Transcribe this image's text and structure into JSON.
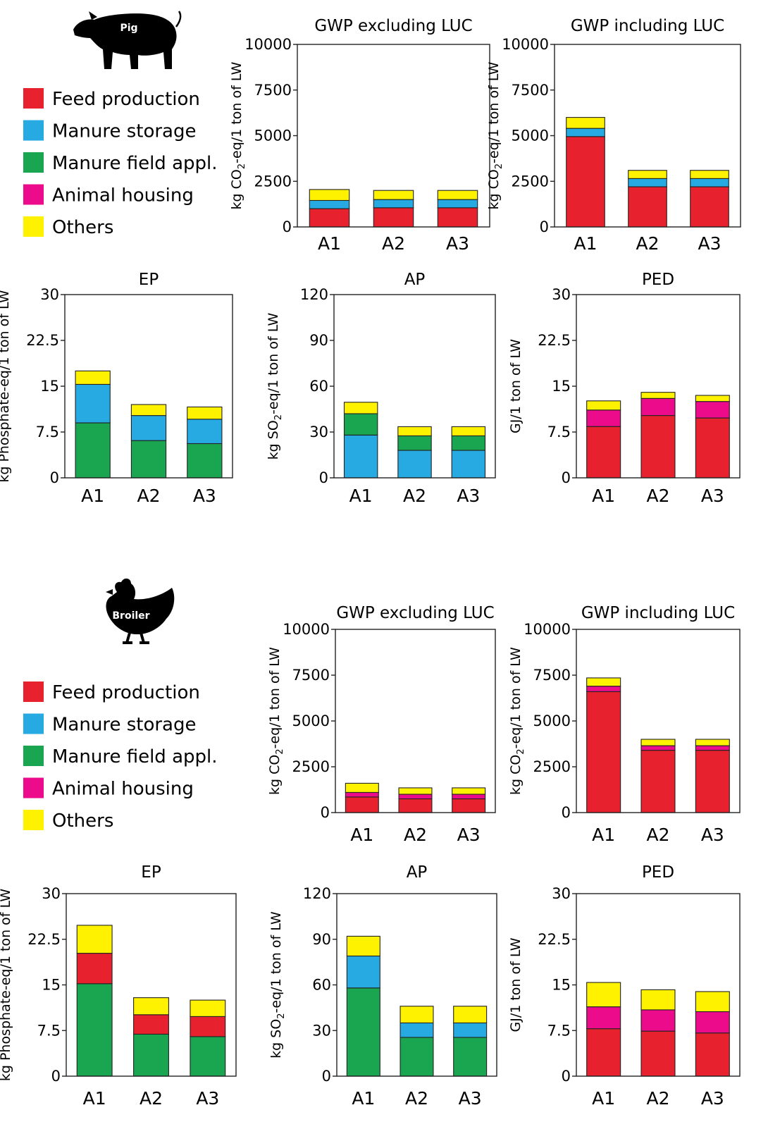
{
  "colors": {
    "feed_production": "#e8212e",
    "manure_storage": "#27aae1",
    "manure_field_appl": "#1aa551",
    "animal_housing": "#ec0b8b",
    "others": "#fff200"
  },
  "icons": [
    "pig-icon",
    "broiler-chicken-icon"
  ],
  "sections": [
    {
      "animal": "Pig",
      "legend": [
        {
          "label": "Feed production",
          "key": "feed_production"
        },
        {
          "label": "Manure storage",
          "key": "manure_storage"
        },
        {
          "label": "Manure field appl.",
          "key": "manure_field_appl"
        },
        {
          "label": "Animal housing",
          "key": "animal_housing"
        },
        {
          "label": "Others",
          "key": "others"
        }
      ]
    },
    {
      "animal": "Broiler",
      "legend": [
        {
          "label": "Feed production",
          "key": "feed_production"
        },
        {
          "label": "Manure storage",
          "key": "manure_storage"
        },
        {
          "label": "Manure field appl.",
          "key": "manure_field_appl"
        },
        {
          "label": "Animal housing",
          "key": "animal_housing"
        },
        {
          "label": "Others",
          "key": "others"
        }
      ]
    }
  ],
  "chart_data": [
    {
      "group": "Pig",
      "type": "bar",
      "stacked": true,
      "title": "GWP excluding LUC",
      "ylabel": "kg CO2-eq/1 ton of LW",
      "ylim": [
        0,
        10000
      ],
      "yticks": [
        "0",
        "2500",
        "5000",
        "7500",
        "10000"
      ],
      "categories": [
        "A1",
        "A2",
        "A3"
      ],
      "series": [
        {
          "key": "feed_production",
          "values": [
            1000,
            1050,
            1050
          ]
        },
        {
          "key": "manure_storage",
          "values": [
            450,
            450,
            450
          ]
        },
        {
          "key": "others",
          "values": [
            600,
            500,
            500
          ]
        }
      ]
    },
    {
      "group": "Pig",
      "type": "bar",
      "stacked": true,
      "title": "GWP including LUC",
      "ylabel": "kg CO2-eq/1 ton of LW",
      "ylim": [
        0,
        10000
      ],
      "yticks": [
        "0",
        "2500",
        "5000",
        "7500",
        "10000"
      ],
      "categories": [
        "A1",
        "A2",
        "A3"
      ],
      "series": [
        {
          "key": "feed_production",
          "values": [
            4950,
            2200,
            2200
          ]
        },
        {
          "key": "manure_storage",
          "values": [
            450,
            450,
            450
          ]
        },
        {
          "key": "others",
          "values": [
            600,
            450,
            450
          ]
        }
      ]
    },
    {
      "group": "Pig",
      "type": "bar",
      "stacked": true,
      "title": "EP",
      "ylabel": "kg Phosphate-eq/1 ton of LW",
      "ylim": [
        0,
        30
      ],
      "yticks": [
        "0",
        "7.5",
        "15",
        "22.5",
        "30"
      ],
      "categories": [
        "A1",
        "A2",
        "A3"
      ],
      "series": [
        {
          "key": "manure_field_appl",
          "values": [
            9,
            6.1,
            5.6
          ]
        },
        {
          "key": "manure_storage",
          "values": [
            6.3,
            4.1,
            4.0
          ]
        },
        {
          "key": "others",
          "values": [
            2.2,
            1.8,
            2.0
          ]
        }
      ]
    },
    {
      "group": "Pig",
      "type": "bar",
      "stacked": true,
      "title": "AP",
      "ylabel": "kg SO2-eq/1 ton of LW",
      "ylim": [
        0,
        120
      ],
      "yticks": [
        "0",
        "30",
        "60",
        "90",
        "120"
      ],
      "categories": [
        "A1",
        "A2",
        "A3"
      ],
      "series": [
        {
          "key": "manure_storage",
          "values": [
            28,
            18,
            18
          ]
        },
        {
          "key": "manure_field_appl",
          "values": [
            14,
            9.5,
            9.5
          ]
        },
        {
          "key": "others",
          "values": [
            7.5,
            6,
            6
          ]
        }
      ]
    },
    {
      "group": "Pig",
      "type": "bar",
      "stacked": true,
      "title": "PED",
      "ylabel": "GJ/1 ton of LW",
      "ylim": [
        0,
        30
      ],
      "yticks": [
        "0",
        "7.5",
        "15",
        "22.5",
        "30"
      ],
      "categories": [
        "A1",
        "A2",
        "A3"
      ],
      "series": [
        {
          "key": "feed_production",
          "values": [
            8.4,
            10.2,
            9.8
          ]
        },
        {
          "key": "animal_housing",
          "values": [
            2.7,
            2.8,
            2.7
          ]
        },
        {
          "key": "others",
          "values": [
            1.5,
            1.0,
            1.0
          ]
        }
      ]
    },
    {
      "group": "Broiler",
      "type": "bar",
      "stacked": true,
      "title": "GWP excluding LUC",
      "ylabel": "kg CO2-eq/1 ton of LW",
      "ylim": [
        0,
        10000
      ],
      "yticks": [
        "0",
        "2500",
        "5000",
        "7500",
        "10000"
      ],
      "categories": [
        "A1",
        "A2",
        "A3"
      ],
      "series": [
        {
          "key": "feed_production",
          "values": [
            850,
            750,
            750
          ]
        },
        {
          "key": "animal_housing",
          "values": [
            250,
            250,
            250
          ]
        },
        {
          "key": "others",
          "values": [
            500,
            350,
            350
          ]
        }
      ]
    },
    {
      "group": "Broiler",
      "type": "bar",
      "stacked": true,
      "title": "GWP including LUC",
      "ylabel": "kg CO2-eq/1 ton of LW",
      "ylim": [
        0,
        10000
      ],
      "yticks": [
        "0",
        "2500",
        "5000",
        "7500",
        "10000"
      ],
      "categories": [
        "A1",
        "A2",
        "A3"
      ],
      "series": [
        {
          "key": "feed_production",
          "values": [
            6600,
            3400,
            3400
          ]
        },
        {
          "key": "animal_housing",
          "values": [
            300,
            250,
            250
          ]
        },
        {
          "key": "others",
          "values": [
            450,
            350,
            350
          ]
        }
      ]
    },
    {
      "group": "Broiler",
      "type": "bar",
      "stacked": true,
      "title": "EP",
      "ylabel": "kg Phosphate-eq/1 ton of LW",
      "ylim": [
        0,
        30
      ],
      "yticks": [
        "0",
        "7.5",
        "15",
        "22.5",
        "30"
      ],
      "categories": [
        "A1",
        "A2",
        "A3"
      ],
      "series": [
        {
          "key": "manure_field_appl",
          "values": [
            15.2,
            6.9,
            6.5
          ]
        },
        {
          "key": "feed_production",
          "values": [
            5.0,
            3.2,
            3.3
          ]
        },
        {
          "key": "others",
          "values": [
            4.6,
            2.8,
            2.7
          ]
        }
      ]
    },
    {
      "group": "Broiler",
      "type": "bar",
      "stacked": true,
      "title": "AP",
      "ylabel": "kg SO2-eq/1 ton of LW",
      "ylim": [
        0,
        120
      ],
      "yticks": [
        "0",
        "30",
        "60",
        "90",
        "120"
      ],
      "categories": [
        "A1",
        "A2",
        "A3"
      ],
      "series": [
        {
          "key": "manure_field_appl",
          "values": [
            58,
            25.5,
            25.5
          ]
        },
        {
          "key": "manure_storage",
          "values": [
            21,
            9.5,
            9.5
          ]
        },
        {
          "key": "others",
          "values": [
            13,
            11,
            11
          ]
        }
      ]
    },
    {
      "group": "Broiler",
      "type": "bar",
      "stacked": true,
      "title": "PED",
      "ylabel": "GJ/1 ton of LW",
      "ylim": [
        0,
        30
      ],
      "yticks": [
        "0",
        "7.5",
        "15",
        "22.5",
        "30"
      ],
      "categories": [
        "A1",
        "A2",
        "A3"
      ],
      "series": [
        {
          "key": "feed_production",
          "values": [
            7.8,
            7.4,
            7.1
          ]
        },
        {
          "key": "animal_housing",
          "values": [
            3.6,
            3.5,
            3.5
          ]
        },
        {
          "key": "others",
          "values": [
            4.0,
            3.3,
            3.3
          ]
        }
      ]
    }
  ]
}
